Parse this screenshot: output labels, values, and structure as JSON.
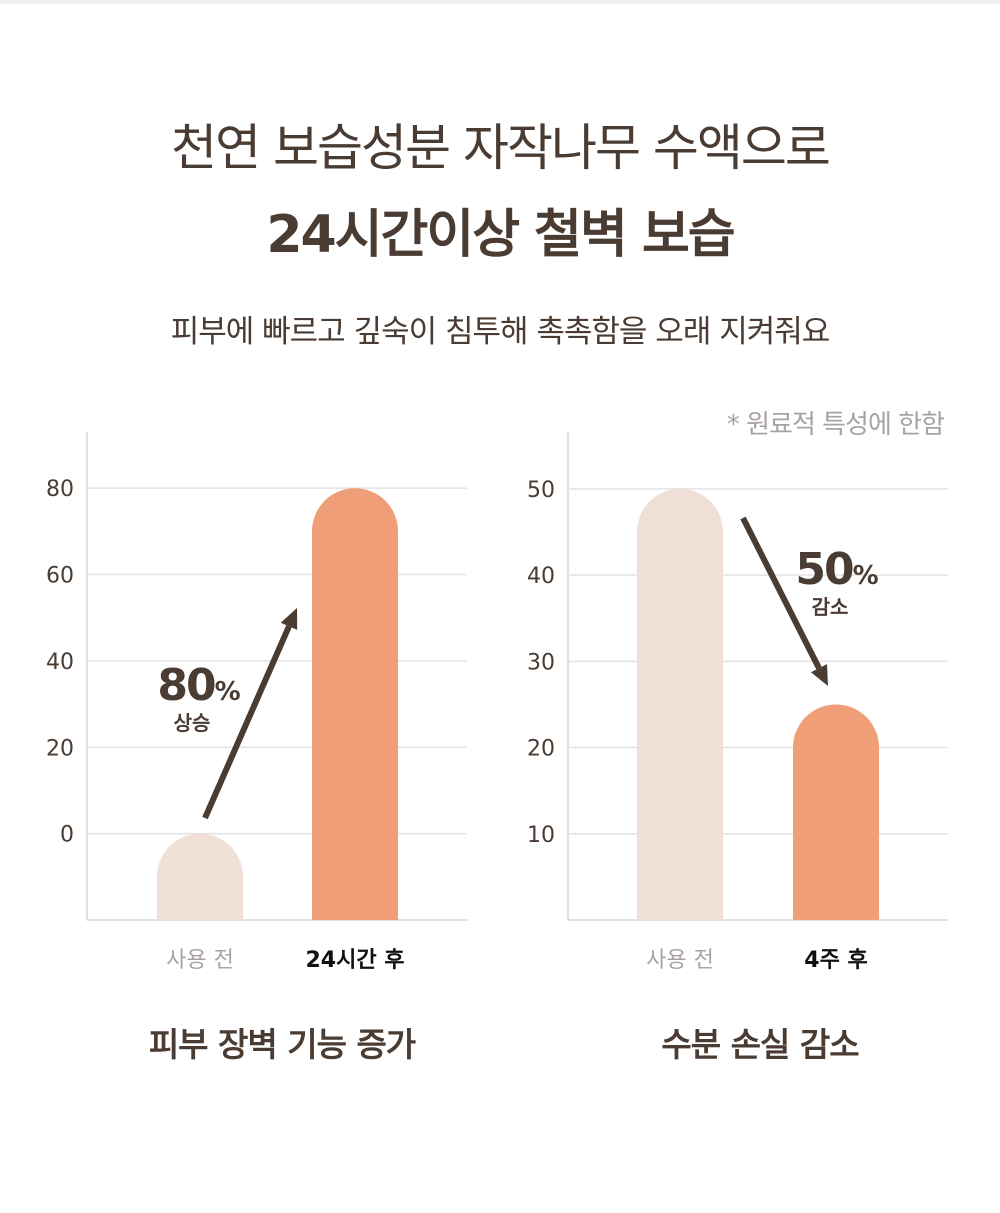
{
  "header": {
    "line1": "천연 보습성분 자작나무 수액으로",
    "line2": "24시간이상 철벽 보습",
    "subtitle": "피부에 빠르고 깊숙이 침투해 촉촉함을 오래 지켜줘요",
    "note": "* 원료적 특성에 한함"
  },
  "colors": {
    "before": "#efdfd7",
    "after": "#ef9e78",
    "text": "#4a3c33",
    "grid": "#e3e3e3"
  },
  "chart_data": [
    {
      "type": "bar",
      "title": "피부 장벽 기능 증가",
      "categories": [
        "사용 전",
        "24시간 후"
      ],
      "values": [
        0,
        80
      ],
      "yticks": [
        0,
        20,
        40,
        60,
        80
      ],
      "ylim": [
        -20,
        93
      ],
      "annotation": {
        "value": "80",
        "unit": "%",
        "label": "상승",
        "direction": "up"
      }
    },
    {
      "type": "bar",
      "title": "수분 손실 감소",
      "categories": [
        "사용 전",
        "4주 후"
      ],
      "values": [
        50,
        25
      ],
      "yticks": [
        10,
        20,
        30,
        40,
        50
      ],
      "ylim": [
        0,
        56.6
      ],
      "annotation": {
        "value": "50",
        "unit": "%",
        "label": "감소",
        "direction": "down"
      }
    }
  ]
}
